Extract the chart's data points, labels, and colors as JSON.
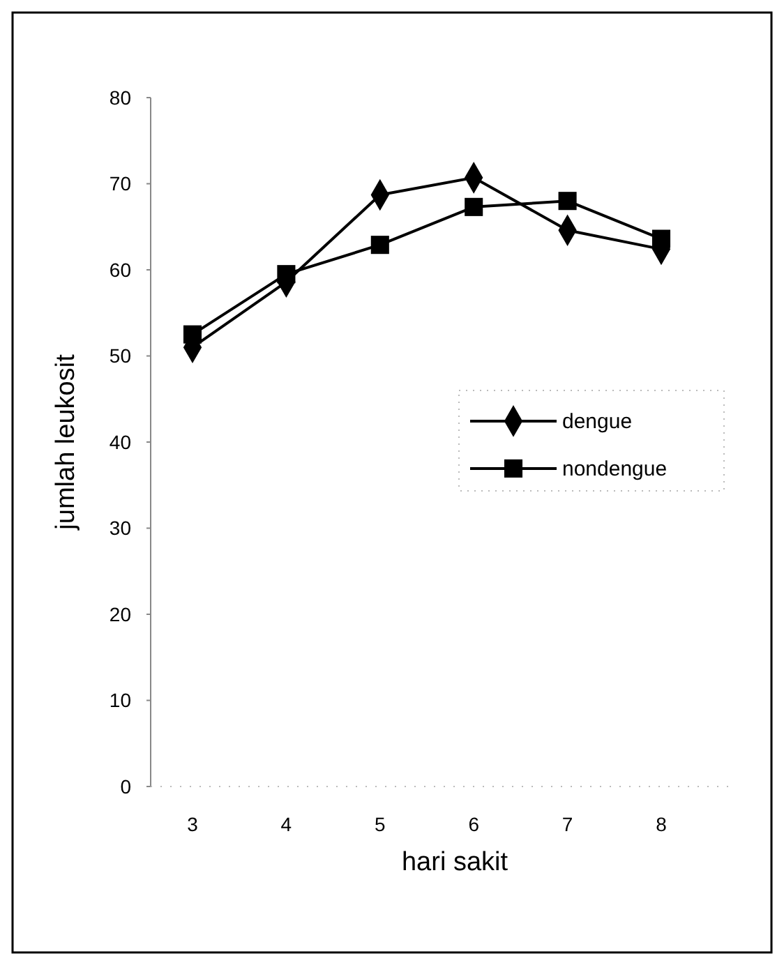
{
  "chart_data": {
    "type": "line",
    "xlabel": "hari sakit",
    "ylabel": "jumlah leukosit",
    "categories": [
      "3",
      "4",
      "5",
      "6",
      "7",
      "8"
    ],
    "series": [
      {
        "name": "dengue",
        "color": "#000000",
        "marker": "diamond",
        "values": [
          51,
          58.6,
          68.7,
          70.7,
          64.6,
          62.4
        ]
      },
      {
        "name": "nondengue",
        "color": "#000000",
        "marker": "square",
        "values": [
          52.5,
          59.5,
          62.9,
          67.3,
          68,
          63.6
        ]
      }
    ],
    "ylim": [
      0,
      80
    ],
    "yticks": [
      0,
      10,
      20,
      30,
      40,
      50,
      60,
      70,
      80
    ],
    "grid": false,
    "legend": "right"
  }
}
